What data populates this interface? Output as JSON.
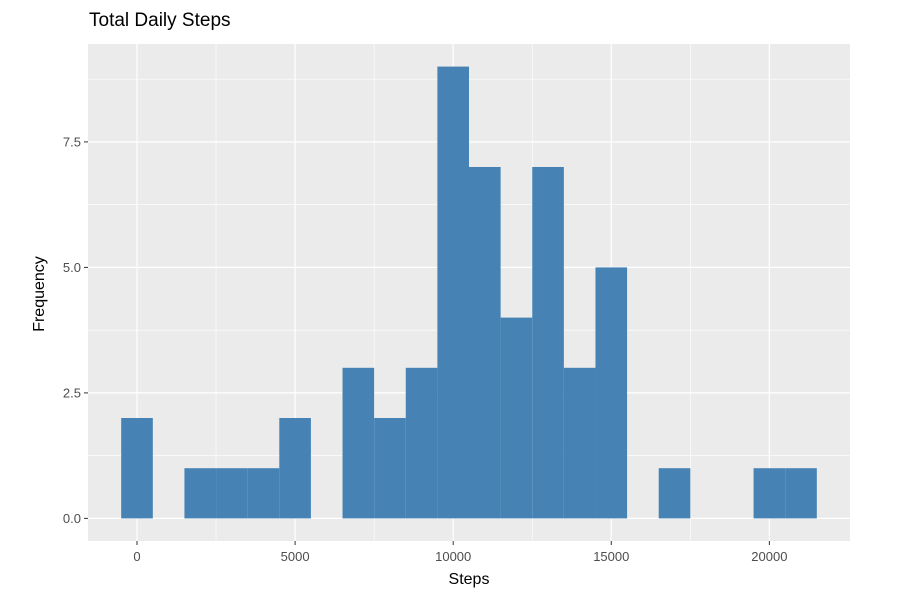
{
  "chart_data": {
    "type": "bar",
    "title": "Total Daily Steps",
    "xlabel": "Steps",
    "ylabel": "Frequency",
    "bin_width": 1000,
    "bins": [
      {
        "from": -500,
        "to": 500,
        "count": 2
      },
      {
        "from": 500,
        "to": 1500,
        "count": 0
      },
      {
        "from": 1500,
        "to": 2500,
        "count": 1
      },
      {
        "from": 2500,
        "to": 3500,
        "count": 1
      },
      {
        "from": 3500,
        "to": 4500,
        "count": 1
      },
      {
        "from": 4500,
        "to": 5500,
        "count": 2
      },
      {
        "from": 5500,
        "to": 6500,
        "count": 0
      },
      {
        "from": 6500,
        "to": 7500,
        "count": 3
      },
      {
        "from": 7500,
        "to": 8500,
        "count": 2
      },
      {
        "from": 8500,
        "to": 9500,
        "count": 3
      },
      {
        "from": 9500,
        "to": 10500,
        "count": 9
      },
      {
        "from": 10500,
        "to": 11500,
        "count": 7
      },
      {
        "from": 11500,
        "to": 12500,
        "count": 4
      },
      {
        "from": 12500,
        "to": 13500,
        "count": 7
      },
      {
        "from": 13500,
        "to": 14500,
        "count": 3
      },
      {
        "from": 14500,
        "to": 15500,
        "count": 5
      },
      {
        "from": 15500,
        "to": 16500,
        "count": 0
      },
      {
        "from": 16500,
        "to": 17500,
        "count": 1
      },
      {
        "from": 17500,
        "to": 18500,
        "count": 0
      },
      {
        "from": 18500,
        "to": 19500,
        "count": 0
      },
      {
        "from": 19500,
        "to": 20500,
        "count": 1
      },
      {
        "from": 20500,
        "to": 21500,
        "count": 1
      }
    ],
    "xlim": [
      -1550,
      22550
    ],
    "ylim": [
      -0.45,
      9.45
    ],
    "x_ticks": [
      0,
      5000,
      10000,
      15000,
      20000
    ],
    "x_tick_labels": [
      "0",
      "5000",
      "10000",
      "15000",
      "20000"
    ],
    "y_ticks": [
      0,
      2.5,
      5,
      7.5
    ],
    "y_tick_labels": [
      "0.0",
      "2.5",
      "5.0",
      "7.5"
    ],
    "grid": true,
    "colors": {
      "bar": "#4682B4",
      "panel": "#EBEBEB",
      "grid": "#FFFFFF",
      "tick_text": "#4D4D4D"
    }
  }
}
